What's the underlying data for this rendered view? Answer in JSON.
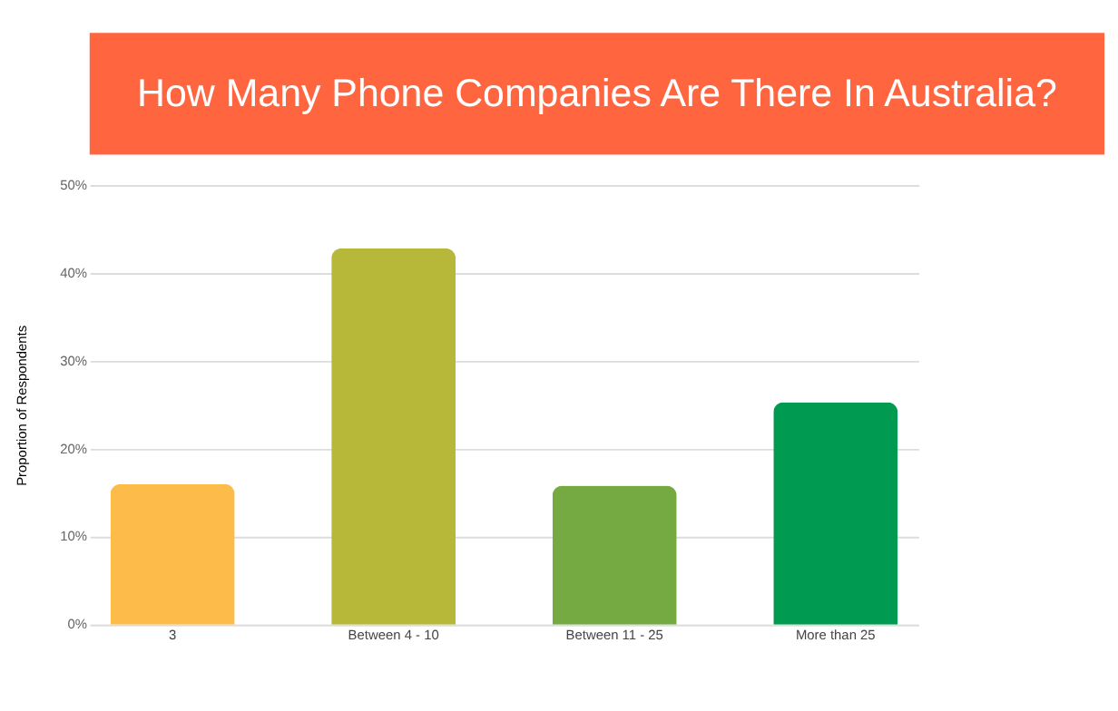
{
  "chart_data": {
    "type": "bar",
    "title": "How Many Phone Companies Are There In Australia?",
    "ylabel": "Proportion of Respondents",
    "categories": [
      "3",
      "Between 4 - 10",
      "Between 11 - 25",
      "More than 25"
    ],
    "values": [
      16,
      42.8,
      15.8,
      25.3
    ],
    "colors": [
      "#fdbb4a",
      "#b7b73a",
      "#74aa41",
      "#019a51"
    ],
    "ylim": [
      0,
      50
    ],
    "yticks": [
      {
        "value": 0,
        "label": "0%"
      },
      {
        "value": 10,
        "label": "10%"
      },
      {
        "value": 20,
        "label": "20%"
      },
      {
        "value": 30,
        "label": "30%"
      },
      {
        "value": 40,
        "label": "40%"
      },
      {
        "value": 50,
        "label": "50%"
      }
    ],
    "grid": "y",
    "legend": false
  }
}
